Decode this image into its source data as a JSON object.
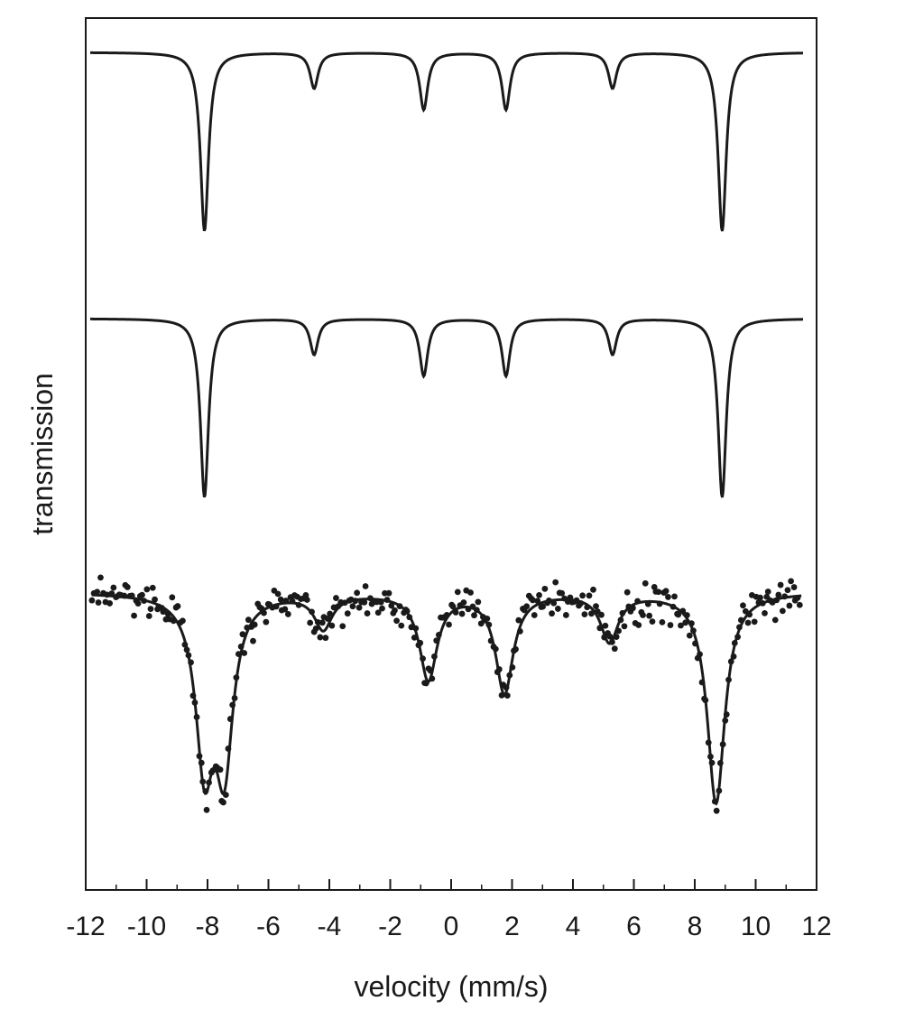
{
  "chart_data": {
    "type": "line",
    "xlabel": "velocity (mm/s)",
    "ylabel": "transmission",
    "xlim": [
      -12,
      12
    ],
    "x_ticks": [
      -12,
      -10,
      -8,
      -6,
      -4,
      -2,
      0,
      2,
      4,
      6,
      8,
      10,
      12
    ],
    "x_minor_step": 1,
    "y_ticks": "none",
    "grid": false,
    "legend": "none",
    "colors": {
      "line": "#1a1a1a",
      "points": "#1a1a1a",
      "frame": "#1a1a1a"
    },
    "series": [
      {
        "kind": "line",
        "line_positions": [
          -8.1,
          -4.5,
          -0.9,
          1.8,
          5.3,
          8.9
        ],
        "line_depths": [
          1.0,
          0.2,
          0.32,
          0.32,
          0.2,
          1.0
        ],
        "line_width_hwhm": 0.16
      },
      {
        "kind": "line",
        "line_positions": [
          -8.1,
          -4.5,
          -0.9,
          1.8,
          5.3,
          8.9
        ],
        "line_depths": [
          1.0,
          0.2,
          0.32,
          0.32,
          0.2,
          1.0
        ],
        "line_width_hwhm": 0.16
      },
      {
        "kind": "measured_points_with_fit",
        "line_positions": [
          -8.1,
          -7.45,
          -4.2,
          -0.75,
          1.75,
          5.2,
          8.7
        ],
        "line_depths": [
          0.85,
          0.85,
          0.18,
          0.45,
          0.52,
          0.25,
          1.1
        ],
        "line_width_hwhm": 0.35,
        "x_range": [
          -11.8,
          11.5
        ],
        "point_count": 340,
        "noise_amplitude": 0.09
      }
    ]
  }
}
